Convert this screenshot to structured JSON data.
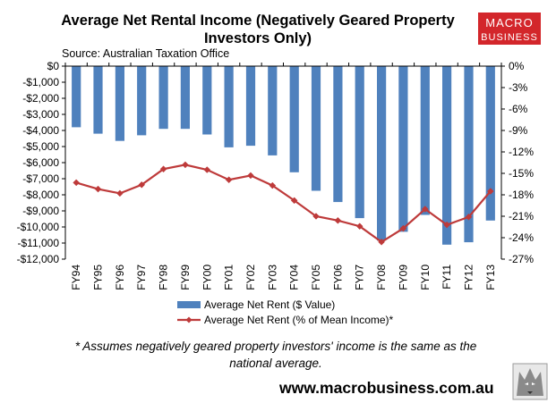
{
  "chart_data": {
    "type": "bar",
    "title_line1": "Average Net Rental Income (Negatively Geared Property",
    "title_line2": "Investors Only)",
    "source": "Source: Australian Taxation Office",
    "categories": [
      "FY94",
      "FY95",
      "FY96",
      "FY97",
      "FY98",
      "FY99",
      "FY00",
      "FY01",
      "FY02",
      "FY03",
      "FY04",
      "FY05",
      "FY06",
      "FY07",
      "FY08",
      "FY09",
      "FY10",
      "FY11",
      "FY12",
      "FY13"
    ],
    "series": [
      {
        "name": "Average Net Rent ($ Value)",
        "type": "bar",
        "axis": "left",
        "color": "#4f81bd",
        "values": [
          -3800,
          -4200,
          -4650,
          -4300,
          -3900,
          -3900,
          -4250,
          -5050,
          -4950,
          -5550,
          -6600,
          -7750,
          -8450,
          -9450,
          -10850,
          -10300,
          -9250,
          -11100,
          -10950,
          -9600
        ]
      },
      {
        "name": "Average Net Rent (% of Mean Income)*",
        "type": "line",
        "axis": "right",
        "color": "#be3a3a",
        "values": [
          -16.3,
          -17.2,
          -17.8,
          -16.6,
          -14.4,
          -13.8,
          -14.5,
          -15.9,
          -15.3,
          -16.7,
          -18.8,
          -21.0,
          -21.6,
          -22.4,
          -24.6,
          -22.7,
          -20.0,
          -22.2,
          -21.1,
          -17.5
        ]
      }
    ],
    "y_left": {
      "min": -12000,
      "max": 0,
      "step": 1000,
      "tick_labels": [
        "$0",
        "-$1,000",
        "-$2,000",
        "-$3,000",
        "-$4,000",
        "-$5,000",
        "-$6,000",
        "-$7,000",
        "-$8,000",
        "-$9,000",
        "-$10,000",
        "-$11,000",
        "-$12,000"
      ]
    },
    "y_right": {
      "min": -27,
      "max": 0,
      "step": 3,
      "tick_labels": [
        "0%",
        "-3%",
        "-6%",
        "-9%",
        "-12%",
        "-15%",
        "-18%",
        "-21%",
        "-24%",
        "-27%"
      ]
    },
    "grid": false,
    "legend": "bottom"
  },
  "footnote_line1": "* Assumes negatively geared property investors' income is the same as the",
  "footnote_line2": "national average.",
  "website": "www.macrobusiness.com.au",
  "logo": {
    "line1": "MACRO",
    "line2": "BUSINESS",
    "color": "#d3262b"
  }
}
